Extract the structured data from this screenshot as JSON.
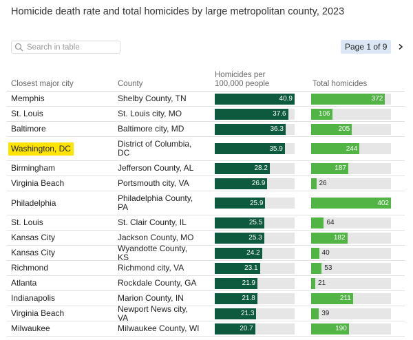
{
  "title": "Homicide death rate and total homicides by large metropolitan county, 2023",
  "search": {
    "placeholder": "Search in table"
  },
  "pager": {
    "label": "Page 1 of 9"
  },
  "headers": {
    "city": "Closest major city",
    "county": "County",
    "rate_line1": "Homicides per",
    "rate_line2": "100,000 people",
    "total": "Total homicides"
  },
  "colors": {
    "rate_bar": "#0e5a3e",
    "total_bar": "#52b445",
    "highlight": "#ffe400",
    "track": "#e6e6e6"
  },
  "scales": {
    "rate_max": 40.9,
    "total_max": 402
  },
  "rows": [
    {
      "city": "Memphis",
      "county": "Shelby County, TN",
      "rate": 40.9,
      "rate_label": "40.9",
      "total": 372,
      "total_label": "372"
    },
    {
      "city": "St. Louis",
      "county": "St. Louis city, MO",
      "rate": 37.6,
      "rate_label": "37.6",
      "total": 106,
      "total_label": "106"
    },
    {
      "city": "Baltimore",
      "county": "Baltimore city, MD",
      "rate": 36.3,
      "rate_label": "36.3",
      "total": 205,
      "total_label": "205"
    },
    {
      "city": "Washington, DC",
      "county": "District of Columbia, DC",
      "rate": 35.9,
      "rate_label": "35.9",
      "total": 244,
      "total_label": "244",
      "highlight": true
    },
    {
      "city": "Birmingham",
      "county": "Jefferson County, AL",
      "rate": 28.2,
      "rate_label": "28.2",
      "total": 187,
      "total_label": "187"
    },
    {
      "city": "Virginia Beach",
      "county": "Portsmouth city, VA",
      "rate": 26.9,
      "rate_label": "26.9",
      "total": 26,
      "total_label": "26"
    },
    {
      "city": "Philadelphia",
      "county": "Philadelphia County, PA",
      "rate": 25.9,
      "rate_label": "25.9",
      "total": 402,
      "total_label": "402"
    },
    {
      "city": "St. Louis",
      "county": "St. Clair County, IL",
      "rate": 25.5,
      "rate_label": "25.5",
      "total": 64,
      "total_label": "64"
    },
    {
      "city": "Kansas City",
      "county": "Jackson County, MO",
      "rate": 25.3,
      "rate_label": "25.3",
      "total": 182,
      "total_label": "182"
    },
    {
      "city": "Kansas City",
      "county": "Wyandotte County, KS",
      "rate": 24.2,
      "rate_label": "24.2",
      "total": 40,
      "total_label": "40"
    },
    {
      "city": "Richmond",
      "county": "Richmond city, VA",
      "rate": 23.1,
      "rate_label": "23.1",
      "total": 53,
      "total_label": "53"
    },
    {
      "city": "Atlanta",
      "county": "Rockdale County, GA",
      "rate": 21.9,
      "rate_label": "21.9",
      "total": 21,
      "total_label": "21"
    },
    {
      "city": "Indianapolis",
      "county": "Marion County, IN",
      "rate": 21.8,
      "rate_label": "21.8",
      "total": 211,
      "total_label": "211"
    },
    {
      "city": "Virginia Beach",
      "county": "Newport News city, VA",
      "rate": 21.3,
      "rate_label": "21.3",
      "total": 39,
      "total_label": "39"
    },
    {
      "city": "Milwaukee",
      "county": "Milwaukee County, WI",
      "rate": 20.7,
      "rate_label": "20.7",
      "total": 190,
      "total_label": "190"
    }
  ]
}
